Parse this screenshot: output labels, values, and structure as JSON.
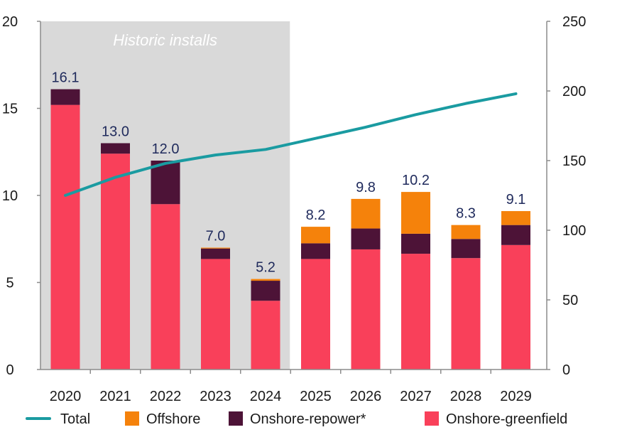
{
  "chart_data": {
    "type": "bar",
    "stacked": true,
    "categories": [
      "2020",
      "2021",
      "2022",
      "2023",
      "2024",
      "2025",
      "2026",
      "2027",
      "2028",
      "2029"
    ],
    "series": [
      {
        "name": "Onshore-greenfield",
        "color": "#f9405a",
        "values": [
          15.2,
          12.4,
          9.5,
          6.35,
          3.95,
          6.35,
          6.9,
          6.65,
          6.4,
          7.15
        ]
      },
      {
        "name": "Onshore-repower*",
        "color": "#4d1337",
        "values": [
          0.9,
          0.6,
          2.5,
          0.6,
          1.15,
          0.9,
          1.2,
          1.15,
          1.1,
          1.15
        ]
      },
      {
        "name": "Offshore",
        "color": "#f5820b",
        "values": [
          0.0,
          0.0,
          0.0,
          0.05,
          0.1,
          0.95,
          1.7,
          2.4,
          0.8,
          0.8
        ]
      }
    ],
    "totals_labels": [
      "16.1",
      "13.0",
      "12.0",
      "7.0",
      "5.2",
      "8.2",
      "9.8",
      "10.2",
      "8.3",
      "9.1"
    ],
    "line": {
      "name": "Total",
      "color": "#1a9ba1",
      "axis": "right",
      "values": [
        125,
        138,
        148,
        154,
        158,
        166,
        174,
        183,
        191,
        198
      ]
    },
    "y_left": {
      "ylim": [
        0,
        20
      ],
      "ticks": [
        "0",
        "5",
        "10",
        "15",
        "20"
      ]
    },
    "y_right": {
      "ylim": [
        0,
        250
      ],
      "ticks": [
        "0",
        "50",
        "100",
        "150",
        "200",
        "250"
      ]
    },
    "annotation": {
      "text": "Historic installs",
      "span": [
        "2020",
        "2024"
      ],
      "color": "#d9d9d9"
    },
    "legend": {
      "placement": "bottom",
      "items": [
        {
          "label": "Total",
          "kind": "line",
          "color": "#1a9ba1"
        },
        {
          "label": "Offshore",
          "kind": "box",
          "color": "#f5820b"
        },
        {
          "label": "Onshore-repower*",
          "kind": "box",
          "color": "#4d1337"
        },
        {
          "label": "Onshore-greenfield",
          "kind": "box",
          "color": "#f9405a"
        }
      ]
    },
    "grid": false
  }
}
